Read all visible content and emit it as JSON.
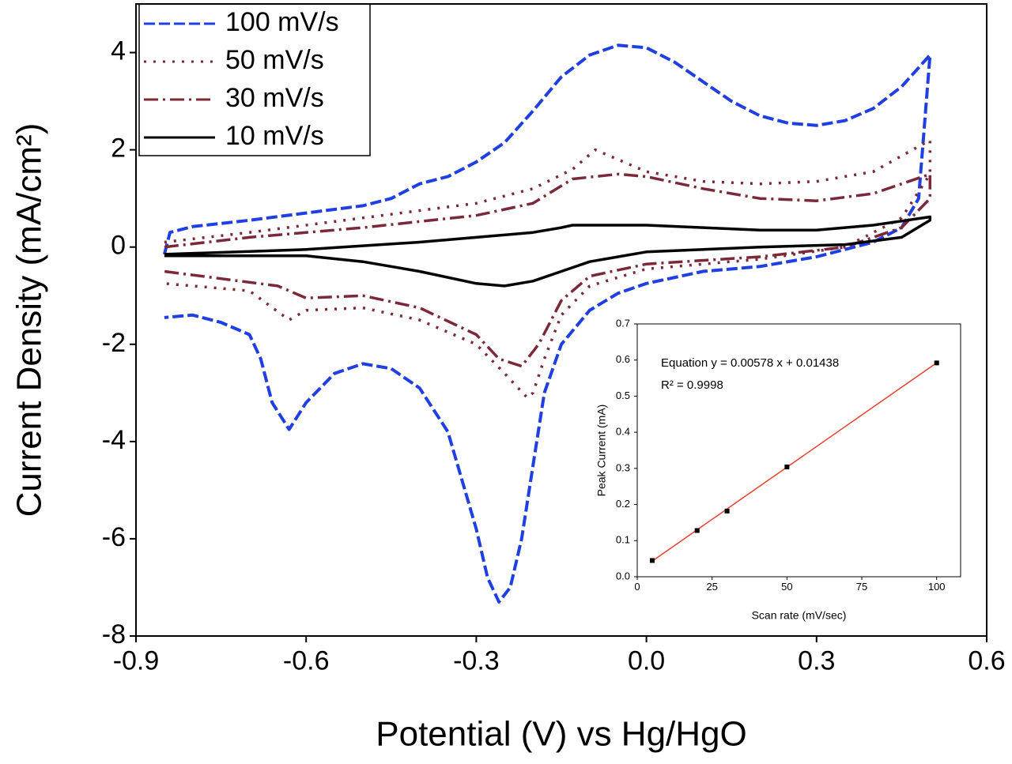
{
  "chart_data": [
    {
      "type": "line",
      "xlabel": "Potential (V) vs Hg/HgO",
      "ylabel": "Current Density (mA/cm²)",
      "xlim": [
        -0.9,
        0.6
      ],
      "ylim": [
        -8,
        5
      ],
      "xticks": [
        -0.9,
        -0.6,
        -0.3,
        {
          "value": 0,
          "label": "0.0"
        },
        0.3,
        0.6
      ],
      "yticks": [
        4,
        2,
        0,
        -2,
        -4,
        -6,
        -8
      ],
      "legend": "upper left",
      "series": [
        {
          "name": "100 mV/s",
          "color": "#1f3fe0",
          "linestyle": "dashed",
          "x": [
            -0.85,
            -0.84,
            -0.8,
            -0.7,
            -0.6,
            -0.5,
            -0.45,
            -0.4,
            -0.35,
            -0.3,
            -0.25,
            -0.2,
            -0.15,
            -0.1,
            -0.05,
            0.0,
            0.05,
            0.1,
            0.15,
            0.2,
            0.25,
            0.3,
            0.35,
            0.4,
            0.45,
            0.5,
            0.48,
            0.45,
            0.4,
            0.35,
            0.3,
            0.2,
            0.1,
            0.0,
            -0.05,
            -0.1,
            -0.15,
            -0.18,
            -0.2,
            -0.22,
            -0.24,
            -0.26,
            -0.28,
            -0.3,
            -0.35,
            -0.4,
            -0.45,
            -0.5,
            -0.55,
            -0.6,
            -0.63,
            -0.66,
            -0.68,
            -0.7,
            -0.75,
            -0.8,
            -0.85
          ],
          "values": [
            -0.15,
            0.3,
            0.42,
            0.55,
            0.7,
            0.85,
            1.0,
            1.3,
            1.45,
            1.75,
            2.15,
            2.8,
            3.5,
            3.95,
            4.15,
            4.1,
            3.8,
            3.4,
            3.0,
            2.7,
            2.55,
            2.5,
            2.6,
            2.85,
            3.3,
            3.95,
            1.0,
            0.4,
            0.1,
            -0.05,
            -0.2,
            -0.4,
            -0.5,
            -0.75,
            -0.95,
            -1.3,
            -2.0,
            -3.0,
            -4.5,
            -6.0,
            -7.0,
            -7.3,
            -6.8,
            -5.8,
            -3.8,
            -2.9,
            -2.5,
            -2.4,
            -2.6,
            -3.2,
            -3.75,
            -3.2,
            -2.3,
            -1.8,
            -1.55,
            -1.4,
            -1.45
          ]
        },
        {
          "name": "50 mV/s",
          "color": "#7b2838",
          "linestyle": "dotted",
          "x": [
            -0.85,
            -0.7,
            -0.5,
            -0.3,
            -0.2,
            -0.13,
            -0.09,
            -0.05,
            0.0,
            0.1,
            0.2,
            0.3,
            0.4,
            0.5,
            0.5,
            0.45,
            0.35,
            0.2,
            0.0,
            -0.1,
            -0.15,
            -0.18,
            -0.2,
            -0.21,
            -0.25,
            -0.3,
            -0.4,
            -0.5,
            -0.6,
            -0.63,
            -0.7,
            -0.85
          ],
          "values": [
            0.1,
            0.3,
            0.6,
            0.9,
            1.2,
            1.6,
            2.0,
            1.8,
            1.55,
            1.35,
            1.3,
            1.35,
            1.55,
            2.2,
            1.5,
            0.6,
            0.0,
            -0.25,
            -0.45,
            -0.8,
            -1.4,
            -2.3,
            -3.0,
            -3.1,
            -2.6,
            -2.0,
            -1.5,
            -1.25,
            -1.3,
            -1.5,
            -0.9,
            -0.75
          ]
        },
        {
          "name": "30 mV/s",
          "color": "#7b2838",
          "linestyle": "dash-dot",
          "x": [
            -0.85,
            -0.7,
            -0.5,
            -0.3,
            -0.2,
            -0.13,
            -0.05,
            0.0,
            0.1,
            0.2,
            0.3,
            0.4,
            0.5,
            0.5,
            0.45,
            0.35,
            0.2,
            0.0,
            -0.1,
            -0.15,
            -0.19,
            -0.22,
            -0.26,
            -0.3,
            -0.4,
            -0.5,
            -0.6,
            -0.65,
            -0.85
          ],
          "values": [
            0.0,
            0.2,
            0.4,
            0.65,
            0.9,
            1.4,
            1.5,
            1.45,
            1.2,
            1.0,
            0.95,
            1.1,
            1.5,
            1.0,
            0.4,
            0.0,
            -0.2,
            -0.35,
            -0.6,
            -1.1,
            -2.0,
            -2.45,
            -2.3,
            -1.8,
            -1.25,
            -1.0,
            -1.05,
            -0.8,
            -0.5
          ]
        },
        {
          "name": "10 mV/s",
          "color": "#000000",
          "linestyle": "solid",
          "x": [
            -0.85,
            -0.6,
            -0.4,
            -0.3,
            -0.2,
            -0.15,
            -0.13,
            -0.1,
            0.0,
            0.1,
            0.2,
            0.3,
            0.4,
            0.5,
            0.5,
            0.45,
            0.35,
            0.2,
            0.0,
            -0.1,
            -0.15,
            -0.2,
            -0.25,
            -0.3,
            -0.4,
            -0.5,
            -0.6,
            -0.85
          ],
          "values": [
            -0.15,
            -0.05,
            0.1,
            0.2,
            0.3,
            0.4,
            0.45,
            0.45,
            0.45,
            0.4,
            0.35,
            0.35,
            0.45,
            0.62,
            0.55,
            0.2,
            0.05,
            0.0,
            -0.1,
            -0.3,
            -0.5,
            -0.7,
            -0.8,
            -0.75,
            -0.5,
            -0.3,
            -0.18,
            -0.18
          ]
        }
      ]
    },
    {
      "type": "scatter",
      "xlabel": "Scan rate (mV/sec)",
      "ylabel": "Peak Current (mA)",
      "annotations": [
        "Equation y = 0.00578 x + 0.01438",
        "R² = 0.9998"
      ],
      "xlim": [
        0,
        108
      ],
      "ylim": [
        0,
        0.7
      ],
      "xticks": [
        0,
        25,
        50,
        75,
        100
      ],
      "yticks": [
        {
          "value": 0,
          "label": "0.0"
        },
        0.1,
        0.2,
        0.3,
        0.4,
        0.5,
        0.6,
        0.7
      ],
      "x": [
        5,
        20,
        30,
        50,
        100
      ],
      "values": [
        0.045,
        0.128,
        0.182,
        0.304,
        0.592
      ],
      "color": "#000000",
      "fit": {
        "color": "#e8412c",
        "x": [
          5,
          100
        ],
        "values": [
          0.0433,
          0.5924
        ]
      }
    }
  ]
}
